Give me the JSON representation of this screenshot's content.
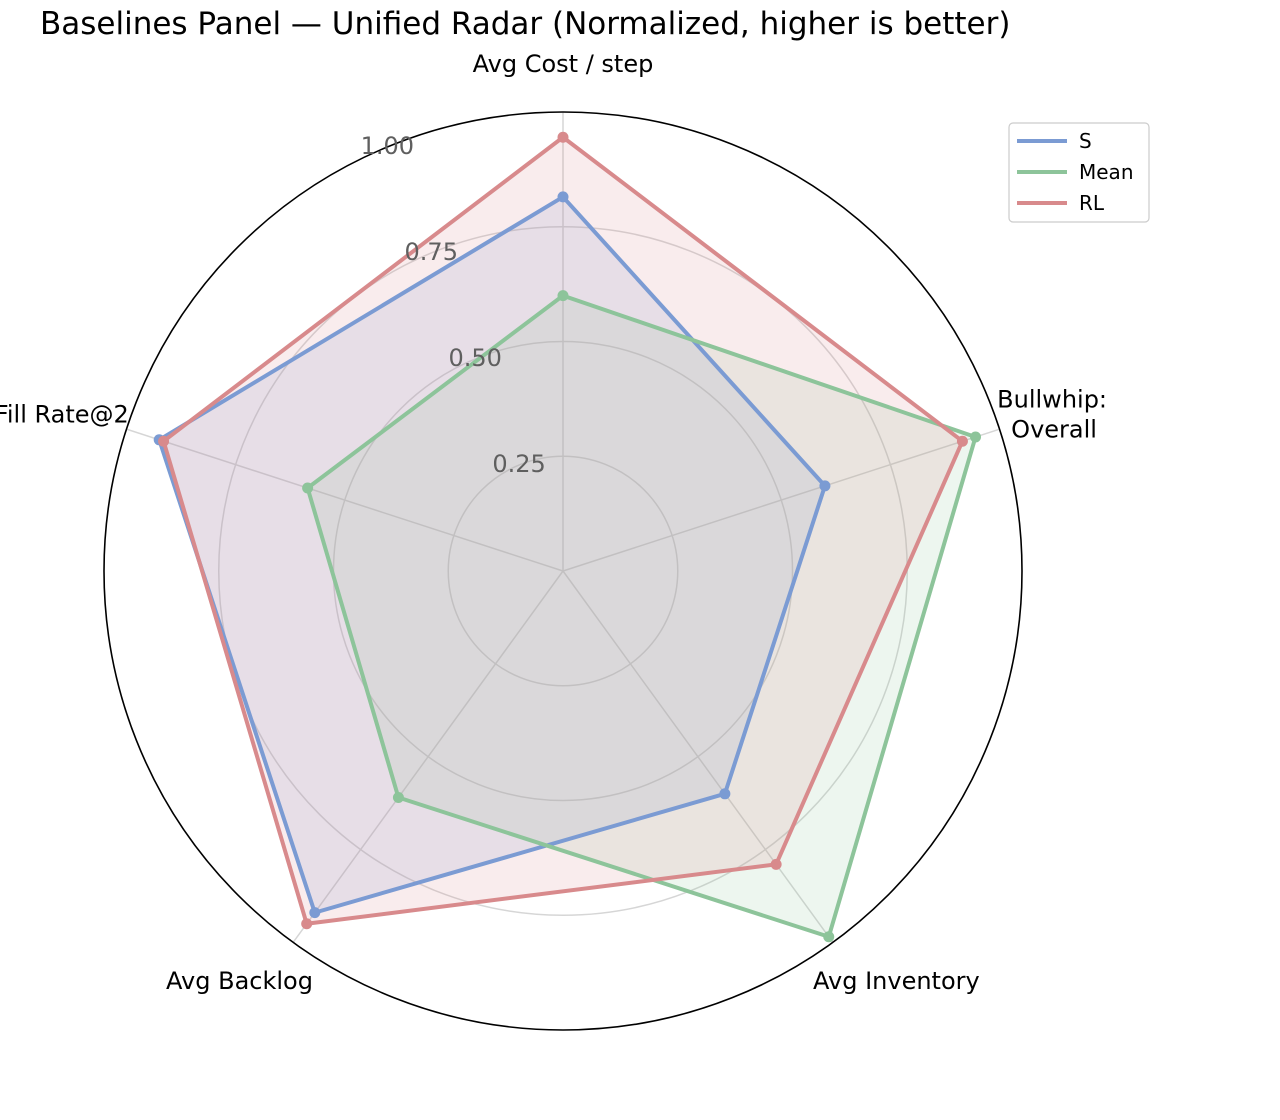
{
  "chart_data": {
    "type": "radar",
    "title": "Baselines Panel — Unified Radar (Normalized, higher is better)",
    "axes": [
      "Avg Cost / step",
      "Bullwhip:\nOverall",
      "Avg Inventory",
      "Avg Backlog",
      "Fill Rate@2"
    ],
    "rticks": [
      0.25,
      0.5,
      0.75,
      1.0
    ],
    "rtick_labels": [
      "0.25",
      "0.50",
      "0.75",
      "1.00"
    ],
    "rlim": [
      0,
      1.0
    ],
    "legend_position": "top-right",
    "series": [
      {
        "name": "S",
        "color": "#7b9bd3",
        "values": [
          0.815,
          0.6,
          0.6,
          0.92,
          0.925
        ]
      },
      {
        "name": "Mean",
        "color": "#8dc49a",
        "values": [
          0.6,
          0.945,
          0.985,
          0.61,
          0.585
        ]
      },
      {
        "name": "RL",
        "color": "#d88a8c",
        "values": [
          0.945,
          0.915,
          0.79,
          0.95,
          0.915
        ]
      }
    ]
  }
}
